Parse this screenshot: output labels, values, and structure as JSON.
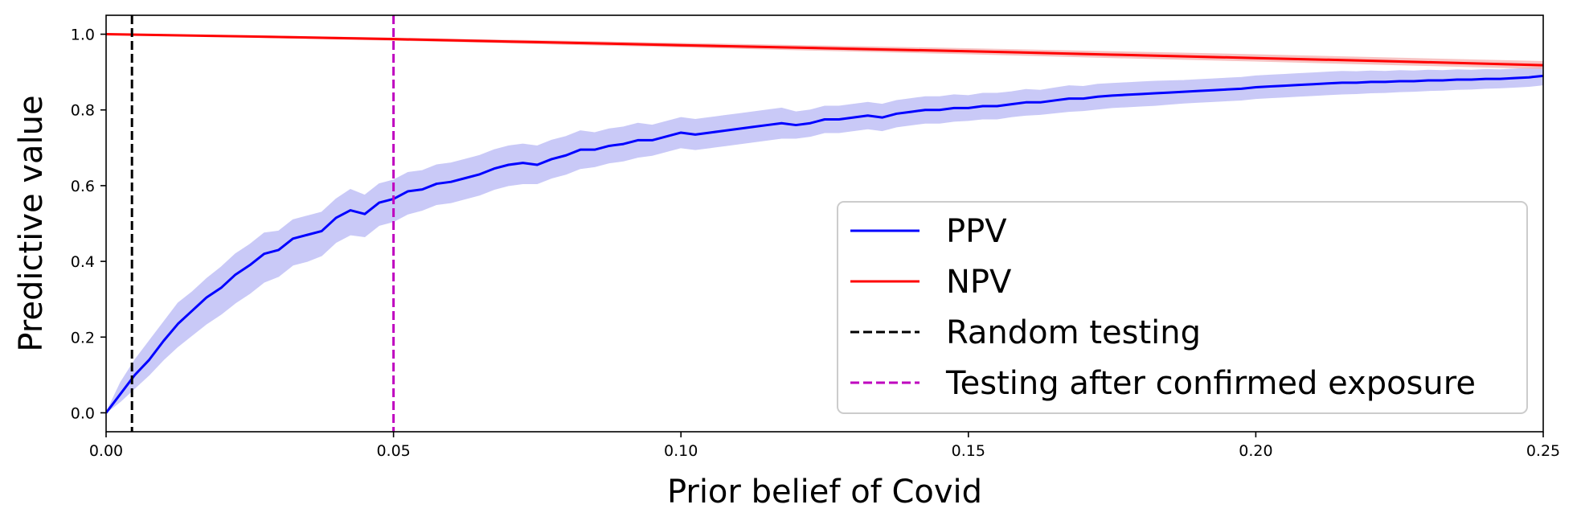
{
  "chart_data": {
    "type": "line",
    "title": "",
    "xlabel": "Prior belief of Covid",
    "ylabel": "Predictive value",
    "xlim": [
      0.0,
      0.25
    ],
    "ylim": [
      -0.05,
      1.05
    ],
    "xticks": [
      0.0,
      0.05,
      0.1,
      0.15,
      0.2,
      0.25
    ],
    "xtick_labels": [
      "0.00",
      "0.05",
      "0.10",
      "0.15",
      "0.20",
      "0.25"
    ],
    "yticks": [
      0.0,
      0.2,
      0.4,
      0.6,
      0.8,
      1.0
    ],
    "ytick_labels": [
      "0.0",
      "0.2",
      "0.4",
      "0.6",
      "0.8",
      "1.0"
    ],
    "grid": false,
    "legend_position": "lower-right",
    "series": [
      {
        "name": "PPV",
        "color": "#0000ff",
        "band_color": "#b8b8f5",
        "x": [
          0.0,
          0.0025,
          0.005,
          0.0075,
          0.01,
          0.0125,
          0.015,
          0.0175,
          0.02,
          0.0225,
          0.025,
          0.0275,
          0.03,
          0.0325,
          0.035,
          0.0375,
          0.04,
          0.0425,
          0.045,
          0.0475,
          0.05,
          0.0525,
          0.055,
          0.0575,
          0.06,
          0.0625,
          0.065,
          0.0675,
          0.07,
          0.0725,
          0.075,
          0.0775,
          0.08,
          0.0825,
          0.085,
          0.0875,
          0.09,
          0.0925,
          0.095,
          0.0975,
          0.1,
          0.1025,
          0.105,
          0.1075,
          0.11,
          0.1125,
          0.115,
          0.1175,
          0.12,
          0.1225,
          0.125,
          0.1275,
          0.13,
          0.1325,
          0.135,
          0.1375,
          0.14,
          0.1425,
          0.145,
          0.1475,
          0.15,
          0.1525,
          0.155,
          0.1575,
          0.16,
          0.1625,
          0.165,
          0.1675,
          0.17,
          0.1725,
          0.175,
          0.1775,
          0.18,
          0.1825,
          0.185,
          0.1875,
          0.19,
          0.1925,
          0.195,
          0.1975,
          0.2,
          0.2025,
          0.205,
          0.2075,
          0.21,
          0.2125,
          0.215,
          0.2175,
          0.22,
          0.2225,
          0.225,
          0.2275,
          0.23,
          0.2325,
          0.235,
          0.2375,
          0.24,
          0.2425,
          0.245,
          0.2475,
          0.25
        ],
        "values": [
          0.0,
          0.05,
          0.1,
          0.14,
          0.19,
          0.235,
          0.27,
          0.305,
          0.33,
          0.365,
          0.39,
          0.42,
          0.43,
          0.46,
          0.47,
          0.48,
          0.515,
          0.535,
          0.525,
          0.555,
          0.565,
          0.585,
          0.59,
          0.605,
          0.61,
          0.62,
          0.63,
          0.645,
          0.655,
          0.66,
          0.655,
          0.67,
          0.68,
          0.695,
          0.695,
          0.705,
          0.71,
          0.72,
          0.72,
          0.73,
          0.74,
          0.735,
          0.74,
          0.745,
          0.75,
          0.755,
          0.76,
          0.765,
          0.76,
          0.765,
          0.775,
          0.775,
          0.78,
          0.785,
          0.78,
          0.79,
          0.795,
          0.8,
          0.8,
          0.805,
          0.805,
          0.81,
          0.81,
          0.815,
          0.82,
          0.82,
          0.825,
          0.83,
          0.83,
          0.835,
          0.838,
          0.84,
          0.842,
          0.844,
          0.846,
          0.848,
          0.85,
          0.852,
          0.854,
          0.856,
          0.86,
          0.862,
          0.864,
          0.866,
          0.868,
          0.87,
          0.872,
          0.872,
          0.874,
          0.874,
          0.876,
          0.876,
          0.878,
          0.878,
          0.88,
          0.88,
          0.882,
          0.882,
          0.884,
          0.886,
          0.89
        ],
        "lower": [
          0.0,
          0.03,
          0.065,
          0.1,
          0.14,
          0.175,
          0.205,
          0.235,
          0.26,
          0.29,
          0.315,
          0.345,
          0.36,
          0.39,
          0.4,
          0.415,
          0.45,
          0.47,
          0.465,
          0.495,
          0.505,
          0.525,
          0.535,
          0.55,
          0.555,
          0.565,
          0.575,
          0.59,
          0.6,
          0.605,
          0.605,
          0.62,
          0.63,
          0.645,
          0.65,
          0.66,
          0.665,
          0.675,
          0.68,
          0.69,
          0.7,
          0.695,
          0.7,
          0.705,
          0.71,
          0.715,
          0.72,
          0.725,
          0.725,
          0.73,
          0.74,
          0.74,
          0.745,
          0.75,
          0.745,
          0.755,
          0.76,
          0.765,
          0.765,
          0.77,
          0.772,
          0.776,
          0.776,
          0.782,
          0.786,
          0.788,
          0.792,
          0.796,
          0.798,
          0.802,
          0.806,
          0.808,
          0.81,
          0.812,
          0.815,
          0.818,
          0.82,
          0.822,
          0.824,
          0.826,
          0.83,
          0.832,
          0.834,
          0.836,
          0.838,
          0.84,
          0.842,
          0.843,
          0.845,
          0.846,
          0.848,
          0.849,
          0.851,
          0.852,
          0.854,
          0.855,
          0.857,
          0.858,
          0.86,
          0.862,
          0.866
        ],
        "upper": [
          0.0,
          0.08,
          0.14,
          0.19,
          0.24,
          0.29,
          0.32,
          0.355,
          0.385,
          0.42,
          0.445,
          0.475,
          0.48,
          0.51,
          0.52,
          0.53,
          0.565,
          0.59,
          0.575,
          0.605,
          0.615,
          0.635,
          0.64,
          0.655,
          0.66,
          0.67,
          0.68,
          0.695,
          0.705,
          0.71,
          0.705,
          0.72,
          0.73,
          0.745,
          0.74,
          0.75,
          0.755,
          0.765,
          0.76,
          0.77,
          0.78,
          0.775,
          0.78,
          0.785,
          0.79,
          0.795,
          0.8,
          0.805,
          0.795,
          0.8,
          0.81,
          0.81,
          0.815,
          0.82,
          0.815,
          0.825,
          0.83,
          0.835,
          0.835,
          0.84,
          0.838,
          0.844,
          0.844,
          0.848,
          0.854,
          0.852,
          0.858,
          0.864,
          0.862,
          0.868,
          0.87,
          0.872,
          0.874,
          0.876,
          0.877,
          0.878,
          0.88,
          0.882,
          0.884,
          0.886,
          0.89,
          0.892,
          0.894,
          0.896,
          0.898,
          0.9,
          0.902,
          0.901,
          0.903,
          0.902,
          0.904,
          0.903,
          0.905,
          0.904,
          0.906,
          0.905,
          0.907,
          0.906,
          0.908,
          0.91,
          0.914
        ]
      },
      {
        "name": "NPV",
        "color": "#ff0000",
        "band_color": "#f5b0b0",
        "x": [
          0.0,
          0.025,
          0.05,
          0.075,
          0.1,
          0.125,
          0.15,
          0.175,
          0.2,
          0.225,
          0.25
        ],
        "values": [
          1.0,
          0.994,
          0.987,
          0.979,
          0.971,
          0.963,
          0.955,
          0.946,
          0.937,
          0.928,
          0.918
        ],
        "lower": [
          1.0,
          0.992,
          0.984,
          0.975,
          0.966,
          0.957,
          0.948,
          0.938,
          0.929,
          0.919,
          0.909
        ],
        "upper": [
          1.0,
          0.996,
          0.99,
          0.983,
          0.976,
          0.969,
          0.962,
          0.954,
          0.946,
          0.937,
          0.928
        ]
      }
    ],
    "vlines": [
      {
        "name": "Random testing",
        "x": 0.0045,
        "color": "#000000",
        "style": "dashed"
      },
      {
        "name": "Testing after confirmed exposure",
        "x": 0.05,
        "color": "#bf00bf",
        "style": "dashed"
      }
    ]
  }
}
